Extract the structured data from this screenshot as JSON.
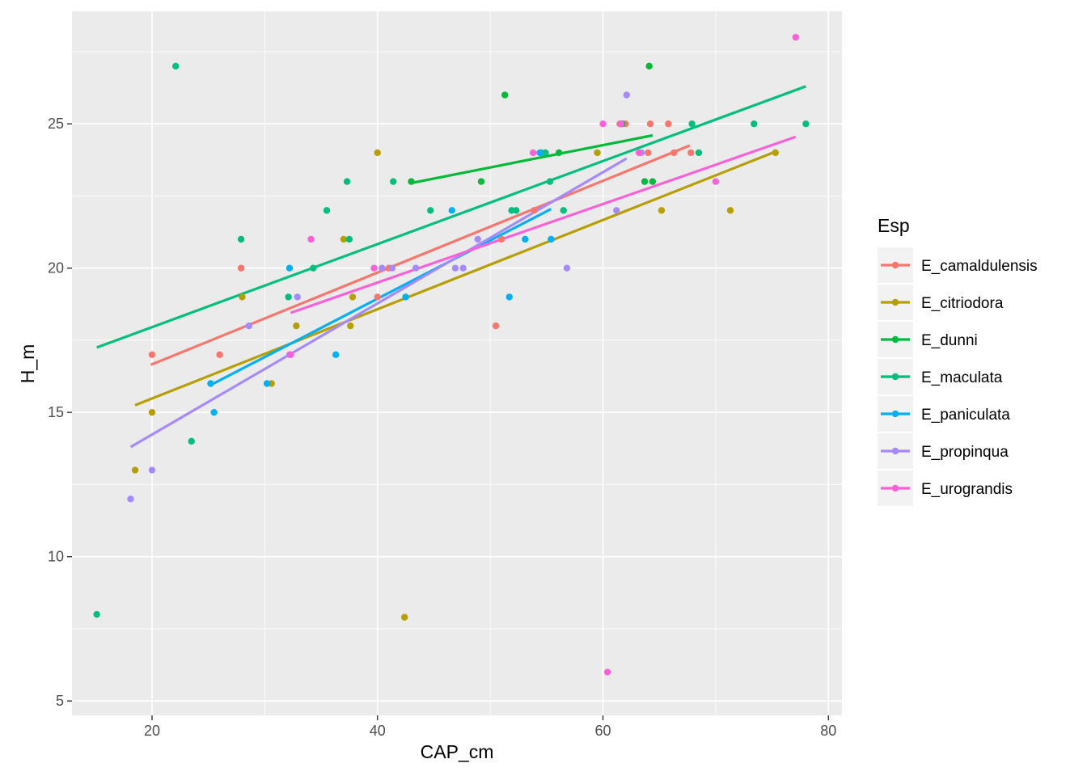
{
  "chart_data": {
    "type": "scatter",
    "xlabel": "CAP_cm",
    "ylabel": "H_m",
    "xlim": [
      12.9,
      81.2
    ],
    "ylim": [
      4.5,
      28.9
    ],
    "x_ticks": [
      20,
      40,
      60,
      80
    ],
    "y_ticks": [
      5,
      10,
      15,
      20,
      25
    ],
    "x_tick_labels": [
      "20",
      "40",
      "60",
      "80"
    ],
    "y_tick_labels": [
      "5",
      "10",
      "15",
      "20",
      "25"
    ],
    "grid": true,
    "legend": {
      "title": "Esp",
      "position": "right"
    },
    "series": [
      {
        "name": "E_camaldulensis",
        "color": "#F8766D",
        "points": [
          [
            20.0,
            17
          ],
          [
            26.0,
            17
          ],
          [
            27.9,
            20
          ],
          [
            40.0,
            19
          ],
          [
            41.0,
            20
          ],
          [
            50.5,
            18
          ],
          [
            51.0,
            21
          ],
          [
            53.9,
            22
          ],
          [
            61.5,
            25
          ],
          [
            62.0,
            25
          ],
          [
            64.0,
            24
          ],
          [
            64.2,
            25
          ],
          [
            65.8,
            25
          ],
          [
            66.3,
            24
          ],
          [
            67.8,
            24
          ]
        ],
        "fit": [
          [
            19.9,
            16.65
          ],
          [
            67.7,
            24.25
          ]
        ]
      },
      {
        "name": "E_citriodora",
        "color": "#B79F00",
        "points": [
          [
            18.5,
            13
          ],
          [
            20.0,
            15
          ],
          [
            28.0,
            19
          ],
          [
            30.6,
            16
          ],
          [
            32.8,
            18
          ],
          [
            37.0,
            21
          ],
          [
            37.6,
            18
          ],
          [
            37.8,
            19
          ],
          [
            40.0,
            24
          ],
          [
            42.4,
            7.9
          ],
          [
            59.5,
            24
          ],
          [
            65.2,
            22
          ],
          [
            71.3,
            22
          ],
          [
            75.3,
            24
          ]
        ],
        "fit": [
          [
            18.5,
            15.25
          ],
          [
            75.4,
            24.05
          ]
        ]
      },
      {
        "name": "E_dunni",
        "color": "#00BA38",
        "points": [
          [
            43.0,
            23
          ],
          [
            49.2,
            23
          ],
          [
            51.3,
            26
          ],
          [
            56.1,
            24
          ],
          [
            61.7,
            25
          ],
          [
            63.7,
            23
          ],
          [
            64.1,
            27
          ],
          [
            64.4,
            23
          ]
        ],
        "fit": [
          [
            43.0,
            22.95
          ],
          [
            64.4,
            24.6
          ]
        ]
      },
      {
        "name": "E_maculata",
        "color": "#00BF7D",
        "points": [
          [
            15.1,
            8
          ],
          [
            22.1,
            27
          ],
          [
            23.5,
            14
          ],
          [
            27.9,
            21
          ],
          [
            32.1,
            19
          ],
          [
            34.3,
            20
          ],
          [
            35.5,
            22
          ],
          [
            37.3,
            23
          ],
          [
            37.5,
            21
          ],
          [
            41.4,
            23
          ],
          [
            44.7,
            22
          ],
          [
            51.9,
            22
          ],
          [
            52.3,
            22
          ],
          [
            54.5,
            24
          ],
          [
            54.9,
            24
          ],
          [
            55.3,
            23
          ],
          [
            56.5,
            22
          ],
          [
            61.6,
            25
          ],
          [
            67.9,
            25
          ],
          [
            68.5,
            24
          ],
          [
            73.4,
            25
          ],
          [
            78.0,
            25
          ]
        ],
        "fit": [
          [
            15.1,
            17.25
          ],
          [
            78.0,
            26.3
          ]
        ]
      },
      {
        "name": "E_paniculata",
        "color": "#00B0F6",
        "points": [
          [
            25.2,
            16
          ],
          [
            25.5,
            15
          ],
          [
            30.2,
            16
          ],
          [
            32.2,
            20
          ],
          [
            36.3,
            17
          ],
          [
            42.5,
            19
          ],
          [
            46.6,
            22
          ],
          [
            51.7,
            19
          ],
          [
            53.1,
            21
          ],
          [
            54.4,
            24
          ],
          [
            55.4,
            21
          ]
        ],
        "fit": [
          [
            25.2,
            15.95
          ],
          [
            55.4,
            22.05
          ]
        ]
      },
      {
        "name": "E_propinqua",
        "color": "#A58AFF",
        "points": [
          [
            18.1,
            12
          ],
          [
            20.0,
            13
          ],
          [
            28.6,
            18
          ],
          [
            32.2,
            17
          ],
          [
            32.9,
            19
          ],
          [
            40.4,
            20
          ],
          [
            41.3,
            20
          ],
          [
            43.4,
            20
          ],
          [
            46.9,
            20
          ],
          [
            47.6,
            20
          ],
          [
            48.9,
            21
          ],
          [
            56.8,
            20
          ],
          [
            61.2,
            22
          ],
          [
            62.1,
            26
          ],
          [
            63.4,
            24
          ]
        ],
        "fit": [
          [
            18.1,
            13.8
          ],
          [
            62.1,
            23.8
          ]
        ]
      },
      {
        "name": "E_urograndis",
        "color": "#FB61D7",
        "points": [
          [
            32.3,
            17
          ],
          [
            34.1,
            21
          ],
          [
            39.7,
            20
          ],
          [
            53.8,
            24
          ],
          [
            60.0,
            25
          ],
          [
            60.4,
            6
          ],
          [
            61.6,
            25
          ],
          [
            63.2,
            24
          ],
          [
            70.0,
            23
          ],
          [
            77.1,
            28
          ]
        ],
        "fit": [
          [
            32.3,
            18.45
          ],
          [
            77.1,
            24.55
          ]
        ]
      }
    ]
  }
}
